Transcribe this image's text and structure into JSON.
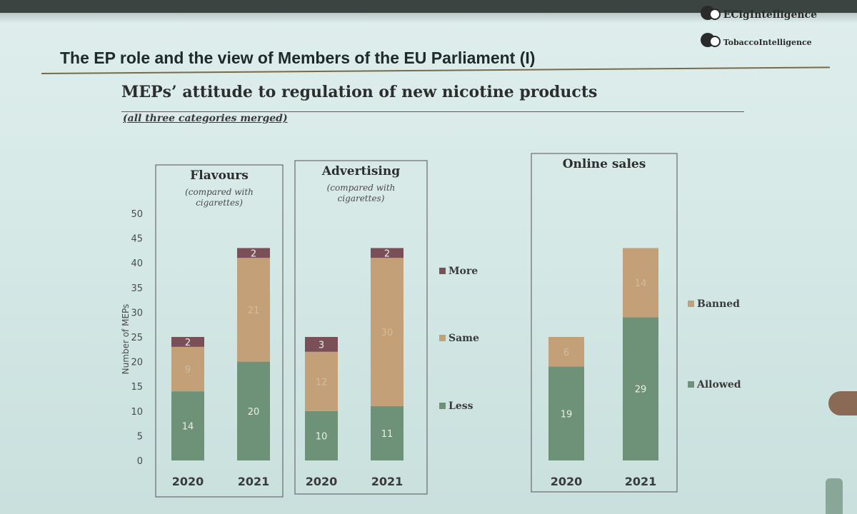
{
  "slide": {
    "title": "The EP role and the view of Members of the EU Parliament (I)",
    "logo_line1": "ECigIntelligence",
    "logo_line2": "TobaccoIntelligence",
    "subtitle": "MEPs’ attitude to regulation of new nicotine products",
    "caption": "(all three categories merged)"
  },
  "colors": {
    "less": "#6e9277",
    "same": "#c4a078",
    "more": "#7a4f58",
    "allowed": "#6e9277",
    "banned": "#c4a078"
  },
  "chart_data": [
    {
      "type": "bar",
      "stacked": true,
      "title": "Flavours",
      "subtitle": "(compared with cigarettes)",
      "categories": [
        "2020",
        "2021"
      ],
      "series": [
        {
          "name": "Less",
          "values": [
            14,
            20
          ]
        },
        {
          "name": "Same",
          "values": [
            9,
            21
          ]
        },
        {
          "name": "More",
          "values": [
            2,
            2
          ]
        }
      ],
      "ylabel": "Number of MEPs",
      "ylim": [
        0,
        50
      ],
      "yticks": [
        0,
        5,
        10,
        15,
        20,
        25,
        30,
        35,
        40,
        45,
        50
      ]
    },
    {
      "type": "bar",
      "stacked": true,
      "title": "Advertising",
      "subtitle": "(compared with cigarettes)",
      "categories": [
        "2020",
        "2021"
      ],
      "series": [
        {
          "name": "Less",
          "values": [
            10,
            11
          ]
        },
        {
          "name": "Same",
          "values": [
            12,
            30
          ]
        },
        {
          "name": "More",
          "values": [
            3,
            2
          ]
        }
      ],
      "ylim": [
        0,
        50
      ],
      "legend": [
        "More",
        "Same",
        "Less"
      ]
    },
    {
      "type": "bar",
      "stacked": true,
      "title": "Online sales",
      "categories": [
        "2020",
        "2021"
      ],
      "series": [
        {
          "name": "Allowed",
          "values": [
            19,
            29
          ]
        },
        {
          "name": "Banned",
          "values": [
            6,
            14
          ]
        }
      ],
      "ylim": [
        0,
        50
      ],
      "legend": [
        "Banned",
        "Allowed"
      ]
    }
  ]
}
